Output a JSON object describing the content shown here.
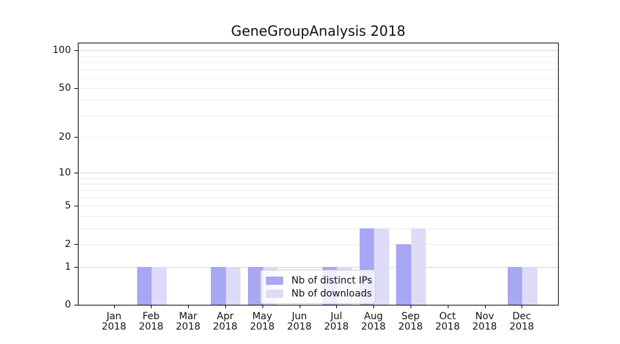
{
  "chart_data": {
    "type": "bar",
    "title": "GeneGroupAnalysis 2018",
    "categories": [
      "Jan 2018",
      "Feb 2018",
      "Mar 2018",
      "Apr 2018",
      "May 2018",
      "Jun 2018",
      "Jul 2018",
      "Aug 2018",
      "Sep 2018",
      "Oct 2018",
      "Nov 2018",
      "Dec 2018"
    ],
    "series": [
      {
        "name": "Nb of distinct IPs",
        "color": "#a7a7f3",
        "values": [
          0,
          1,
          0,
          1,
          1,
          0,
          1,
          3,
          2,
          0,
          0,
          1
        ]
      },
      {
        "name": "Nb of downloads",
        "color": "#dcdcf8",
        "values": [
          0,
          1,
          0,
          1,
          1,
          0,
          1,
          3,
          3,
          0,
          0,
          1
        ]
      }
    ],
    "xlabel": "",
    "ylabel": "",
    "yscale": "log1p",
    "ylim": [
      0,
      114
    ],
    "yticks": [
      0,
      1,
      2,
      5,
      10,
      20,
      50,
      100
    ],
    "yticks_minor": [
      2,
      3,
      4,
      5,
      6,
      7,
      8,
      9,
      20,
      30,
      40,
      50,
      60,
      70,
      80,
      90
    ],
    "grid_major_values": [
      1,
      10,
      100
    ],
    "grid": "horizontal",
    "legend_position": "lower-center-inside"
  },
  "colors": {
    "grid_major": "#d6d6d6",
    "grid_minor": "#ececec",
    "axis": "#000000",
    "text": "#111111",
    "legend_border": "#cccccc",
    "background": "#ffffff"
  }
}
